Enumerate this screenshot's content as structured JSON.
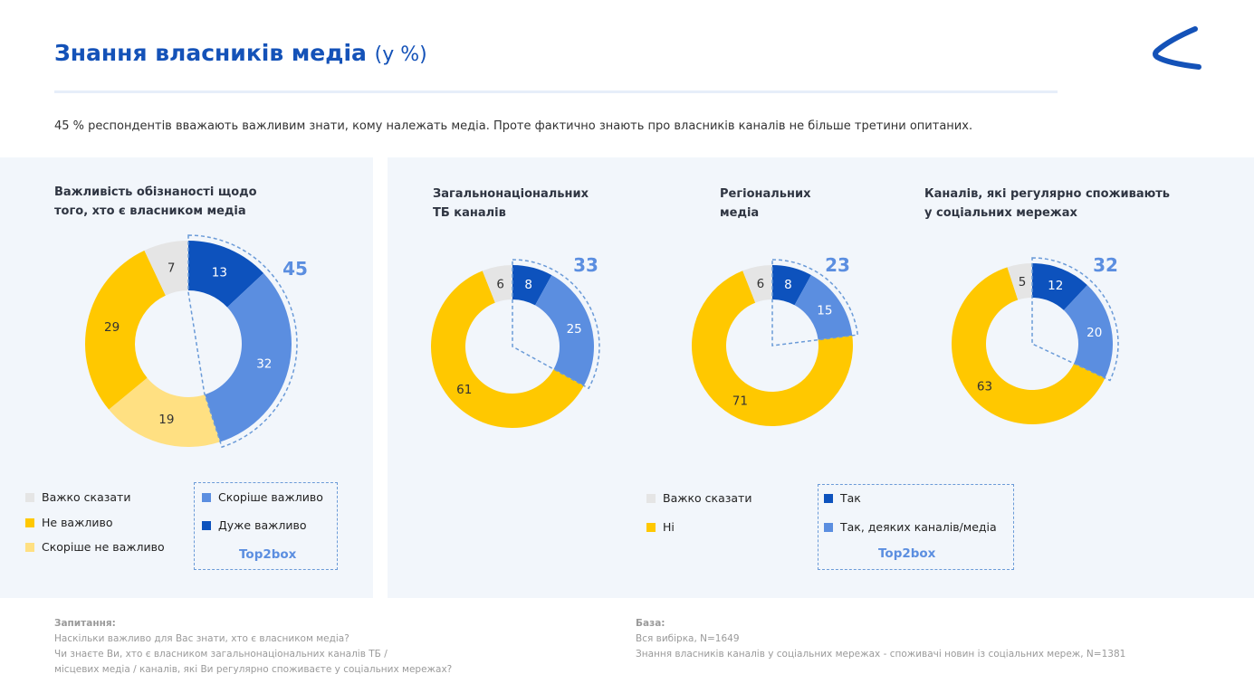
{
  "header": {
    "title": "Знання власників медіа",
    "title_unit": "(у %)",
    "subtitle": "45 % респондентів вважають важливим знати, кому належать медіа. Проте фактично знають про власників каналів не більше третини опитаних."
  },
  "colors": {
    "grey": "#e5e5e5",
    "yellow": "#ffc800",
    "light_yellow": "#ffe082",
    "blue": "#5b8ee0",
    "dark_blue": "#0d52bd",
    "accent": "#1452b8"
  },
  "chart_data": [
    {
      "type": "pie",
      "title_line1": "Важливість обізнаності щодо",
      "title_line2": "того, хто є власником медіа",
      "total_label": "45",
      "slices": [
        {
          "name": "Дуже важливо",
          "value": 13,
          "color": "dark_blue"
        },
        {
          "name": "Скоріше важливо",
          "value": 32,
          "color": "blue"
        },
        {
          "name": "Скоріше не важливо",
          "value": 19,
          "color": "light_yellow"
        },
        {
          "name": "Не важливо",
          "value": 29,
          "color": "yellow"
        },
        {
          "name": "Важко сказати",
          "value": 7,
          "color": "grey"
        }
      ]
    },
    {
      "type": "pie",
      "title_line1": "Загальнонаціональних",
      "title_line2": "ТБ каналів",
      "total_label": "33",
      "slices": [
        {
          "name": "Так",
          "value": 8,
          "color": "dark_blue"
        },
        {
          "name": "Так, деяких каналів/медіа",
          "value": 25,
          "color": "blue"
        },
        {
          "name": "Ні",
          "value": 61,
          "color": "yellow"
        },
        {
          "name": "Важко сказати",
          "value": 6,
          "color": "grey"
        }
      ]
    },
    {
      "type": "pie",
      "title_line1": "Регіональних",
      "title_line2": "медіа",
      "total_label": "23",
      "slices": [
        {
          "name": "Так",
          "value": 8,
          "color": "dark_blue"
        },
        {
          "name": "Так, деяких каналів/медіа",
          "value": 15,
          "color": "blue"
        },
        {
          "name": "Ні",
          "value": 71,
          "color": "yellow"
        },
        {
          "name": "Важко сказати",
          "value": 6,
          "color": "grey"
        }
      ]
    },
    {
      "type": "pie",
      "title_line1": "Каналів, які регулярно споживають",
      "title_line2": "у соціальних мережах",
      "total_label": "32",
      "slices": [
        {
          "name": "Так",
          "value": 12,
          "color": "dark_blue"
        },
        {
          "name": "Так, деяких каналів/медіа",
          "value": 20,
          "color": "blue"
        },
        {
          "name": "Ні",
          "value": 63,
          "color": "yellow"
        },
        {
          "name": "Важко сказати",
          "value": 5,
          "color": "grey"
        }
      ]
    }
  ],
  "legend_left": {
    "items": [
      {
        "label": "Важко сказати",
        "color": "grey"
      },
      {
        "label": "Не важливо",
        "color": "yellow"
      },
      {
        "label": "Скоріше не важливо",
        "color": "light_yellow"
      }
    ],
    "boxed_items": [
      {
        "label": "Скоріше важливо",
        "color": "blue"
      },
      {
        "label": "Дуже важливо",
        "color": "dark_blue"
      }
    ],
    "box_label": "Top2box"
  },
  "legend_right": {
    "items": [
      {
        "label": "Важко сказати",
        "color": "grey"
      },
      {
        "label": "Ні",
        "color": "yellow"
      }
    ],
    "boxed_items": [
      {
        "label": "Так",
        "color": "dark_blue"
      },
      {
        "label": "Так, деяких каналів/медіа",
        "color": "blue"
      }
    ],
    "box_label": "Top2box"
  },
  "footer": {
    "question_heading": "Запитання:",
    "question_lines": [
      "Наскільки важливо для Вас знати, хто є власником медіа?",
      "Чи знаєте Ви, хто є власником загальнонаціональних каналів ТБ /",
      "місцевих медіа / каналів, які Ви регулярно споживаєте у соціальних мережах?"
    ],
    "base_heading": "База:",
    "base_lines": [
      "Вся вибірка, N=1649",
      "Знання власників каналів у соціальних мережах - споживачі новин із соціальних мереж, N=1381"
    ]
  }
}
